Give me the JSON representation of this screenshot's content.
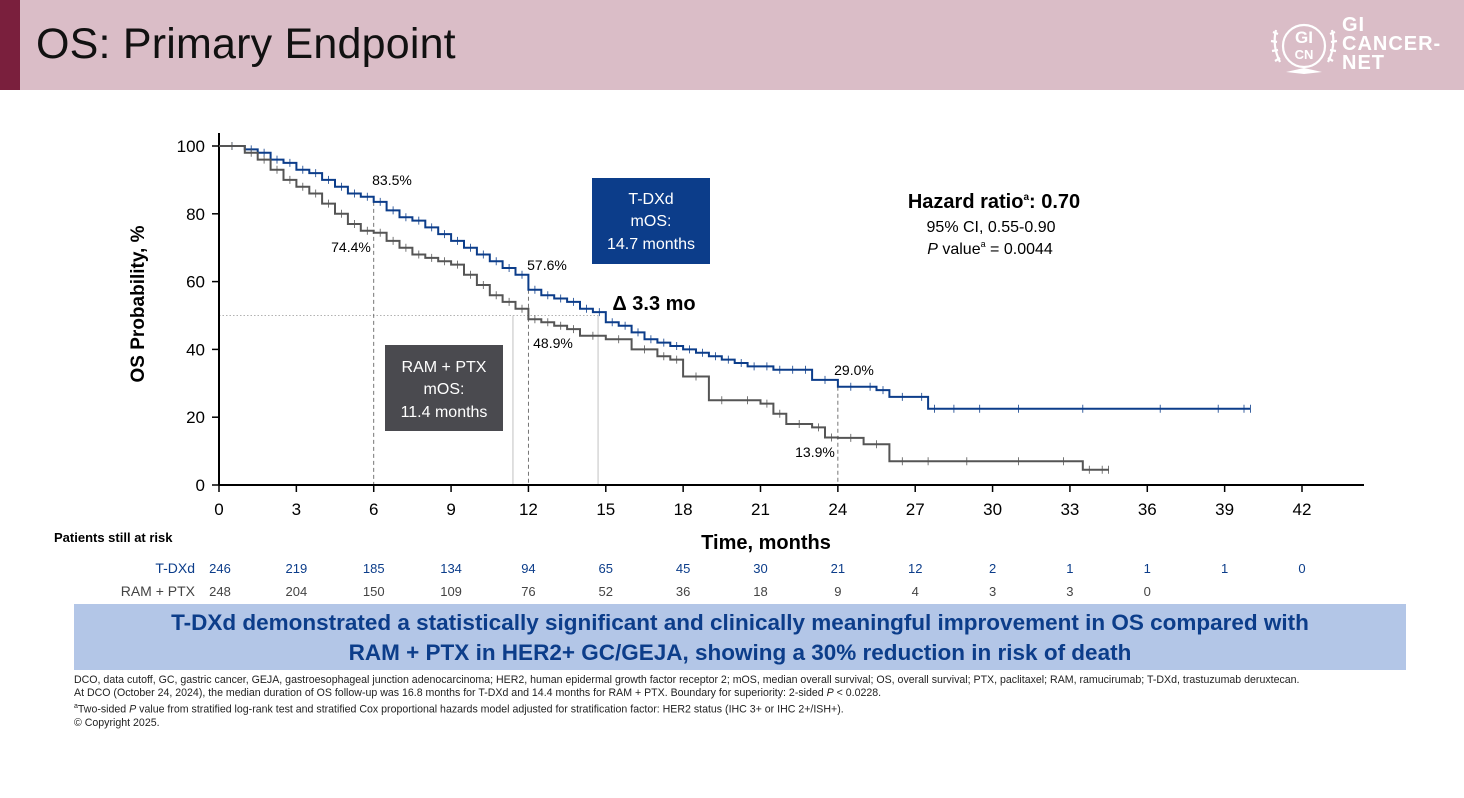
{
  "slide": {
    "title": "OS: Primary Endpoint",
    "logo": {
      "line1": "GI",
      "line2": "CANCER-",
      "line3": "NET",
      "emblem_top": "GI",
      "emblem_bottom": "CN"
    }
  },
  "colors": {
    "tdxd": "#0c3d8a",
    "ram": "#555555",
    "header_bg": "#dabdc7",
    "header_accent": "#7a1f3d",
    "banner_bg": "#b3c6e7"
  },
  "chart_data": {
    "type": "line",
    "xlabel": "Time, months",
    "ylabel": "OS Probability, %",
    "xlim": [
      0,
      44
    ],
    "ylim": [
      0,
      100
    ],
    "x_ticks": [
      0,
      3,
      6,
      9,
      12,
      15,
      18,
      21,
      24,
      27,
      30,
      33,
      36,
      39,
      42
    ],
    "y_ticks": [
      0,
      20,
      40,
      60,
      80,
      100
    ],
    "grid": false,
    "series": [
      {
        "name": "T-DXd",
        "color": "#0c3d8a",
        "x": [
          0,
          1,
          1.5,
          2,
          2.5,
          3,
          3.5,
          4,
          4.5,
          5,
          5.5,
          6,
          6.5,
          7,
          7.5,
          8,
          8.5,
          9,
          9.5,
          10,
          10.5,
          11,
          11.5,
          12,
          12.5,
          13,
          13.5,
          14,
          14.5,
          15,
          15.5,
          16,
          16.5,
          17,
          17.5,
          18,
          18.5,
          19,
          19.5,
          20,
          20.5,
          21,
          21.5,
          22,
          22.5,
          23,
          24,
          25,
          25.5,
          26,
          27,
          27.5,
          28,
          29,
          30,
          32,
          35,
          38,
          39.5,
          40
        ],
        "y": [
          100,
          99,
          98,
          96,
          95,
          93,
          92,
          90,
          88,
          86,
          85,
          83.5,
          81,
          79,
          78,
          76,
          74,
          72,
          70,
          68,
          66,
          64,
          62,
          57.6,
          56,
          55,
          54,
          52,
          51,
          48,
          47,
          45,
          43,
          42,
          41,
          40,
          39,
          38,
          37,
          36,
          35,
          35,
          34,
          34,
          34,
          31,
          29,
          29,
          28,
          26,
          26,
          22.5,
          22.5,
          22.5,
          22.5,
          22.5,
          22.5,
          22.5,
          22.5,
          22.5
        ]
      },
      {
        "name": "RAM + PTX",
        "color": "#555555",
        "x": [
          0,
          1,
          1.5,
          2,
          2.5,
          3,
          3.5,
          4,
          4.5,
          5,
          5.5,
          6,
          6.5,
          7,
          7.5,
          8,
          8.5,
          9,
          9.5,
          10,
          10.5,
          11,
          11.5,
          12,
          12.5,
          13,
          13.5,
          14,
          15,
          16,
          17,
          17.5,
          18,
          19,
          20,
          21,
          21.5,
          22,
          23,
          23.5,
          24,
          25,
          26,
          27,
          28,
          30,
          32,
          33.5,
          34,
          34.5
        ],
        "y": [
          100,
          98,
          96,
          93,
          90,
          88,
          86,
          83,
          80,
          77,
          75,
          74.4,
          72,
          70,
          68,
          67,
          66,
          65,
          62,
          59,
          56,
          54,
          52,
          48.9,
          48,
          47,
          46,
          44,
          43,
          40,
          38,
          37,
          32,
          25,
          25,
          24,
          21,
          18,
          17,
          14,
          13.9,
          12,
          7,
          7,
          7,
          7,
          7,
          4.5,
          4.5,
          4.5
        ]
      }
    ],
    "annotations": {
      "tdxd_6": "83.5%",
      "ram_6": "74.4%",
      "tdxd_12": "57.6%",
      "ram_12": "48.9%",
      "tdxd_24": "29.0%",
      "ram_24": "13.9%",
      "delta": "Δ 3.3 mo",
      "tdxd_box": {
        "line1": "T-DXd",
        "line2": "mOS:",
        "line3": "14.7 months"
      },
      "ram_box": {
        "line1": "RAM + PTX",
        "line2": "mOS:",
        "line3": "11.4 months"
      },
      "median_tdxd": 14.7,
      "median_ram": 11.4,
      "hr": {
        "label": "Hazard ratio",
        "sup": "a",
        "value": ": 0.70",
        "ci": "95% CI, 0.55-0.90",
        "p_italic": "P",
        "p_rest": " value",
        "p_sup": "a",
        "p_value": " = 0.0044"
      }
    },
    "at_risk": {
      "title": "Patients still at risk",
      "rows": [
        {
          "label": "T-DXd",
          "values": [
            "246",
            "219",
            "185",
            "134",
            "94",
            "65",
            "45",
            "30",
            "21",
            "12",
            "2",
            "1",
            "1",
            "1",
            "0"
          ]
        },
        {
          "label": "RAM + PTX",
          "values": [
            "248",
            "204",
            "150",
            "109",
            "76",
            "52",
            "36",
            "18",
            "9",
            "4",
            "3",
            "3",
            "0"
          ]
        }
      ]
    }
  },
  "banner": {
    "line1": "T-DXd demonstrated a statistically significant and clinically meaningful improvement in OS compared with",
    "line2": "RAM + PTX in HER2+ GC/GEJA, showing a 30% reduction in risk of death"
  },
  "footnotes": {
    "abbrev": "DCO, data cutoff, GC, gastric cancer, GEJA, gastroesophageal junction adenocarcinoma; HER2, human epidermal growth factor receptor 2; mOS, median overall survival; OS, overall survival; PTX, paclitaxel; RAM, ramucirumab; T-DXd, trastuzumab deruxtecan.",
    "dco_start": "At DCO (October 24, 2024), the median duration of OS follow-up was 16.8 months for T-DXd and 14.4 months for RAM + PTX. Boundary for superiority: 2-sided ",
    "dco_p": "P",
    "dco_end": " < 0.0228.",
    "sup_a": "a",
    "note_start": "Two-sided ",
    "note_p": "P",
    "note_end": " value from stratified log-rank test and stratified Cox proportional hazards model adjusted for stratification factor: HER2 status (IHC 3+ or IHC 2+/ISH+).",
    "copyright": "© Copyright 2025."
  }
}
